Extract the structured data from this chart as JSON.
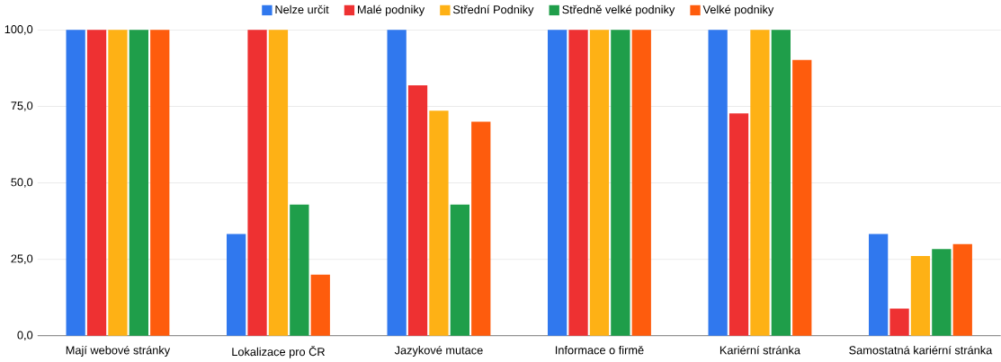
{
  "chart_data": {
    "type": "bar",
    "categories": [
      "Mají webové stránky",
      "Lokalizace pro ČR",
      "Jazykové mutace",
      "Informace o firmě",
      "Kariérní stránka",
      "Samostatná kariérní stránka"
    ],
    "series": [
      {
        "name": "Nelze určit",
        "color": "#3078ee",
        "values": [
          100,
          33.3,
          100,
          100,
          100,
          33.3
        ]
      },
      {
        "name": "Malé podniky",
        "color": "#ee3132",
        "values": [
          100,
          100,
          81.9,
          100,
          72.7,
          8.9
        ]
      },
      {
        "name": "Střední Podniky",
        "color": "#feb115",
        "values": [
          100,
          100,
          73.6,
          100,
          100,
          26.1
        ]
      },
      {
        "name": "Středně velké podniky",
        "color": "#1f9e4a",
        "values": [
          100,
          42.9,
          42.9,
          100,
          100,
          28.4
        ]
      },
      {
        "name": "Velké podniky",
        "color": "#fe5c0d",
        "values": [
          100,
          20,
          70,
          100,
          90.2,
          30
        ]
      }
    ],
    "ylim": [
      0,
      100
    ],
    "yticks": [
      {
        "value": 0,
        "label": "0,0"
      },
      {
        "value": 25,
        "label": "25,0"
      },
      {
        "value": 50,
        "label": "50,0"
      },
      {
        "value": 75,
        "label": "75,0"
      },
      {
        "value": 100,
        "label": "100,0"
      }
    ],
    "grid": "y",
    "legend": "top"
  }
}
